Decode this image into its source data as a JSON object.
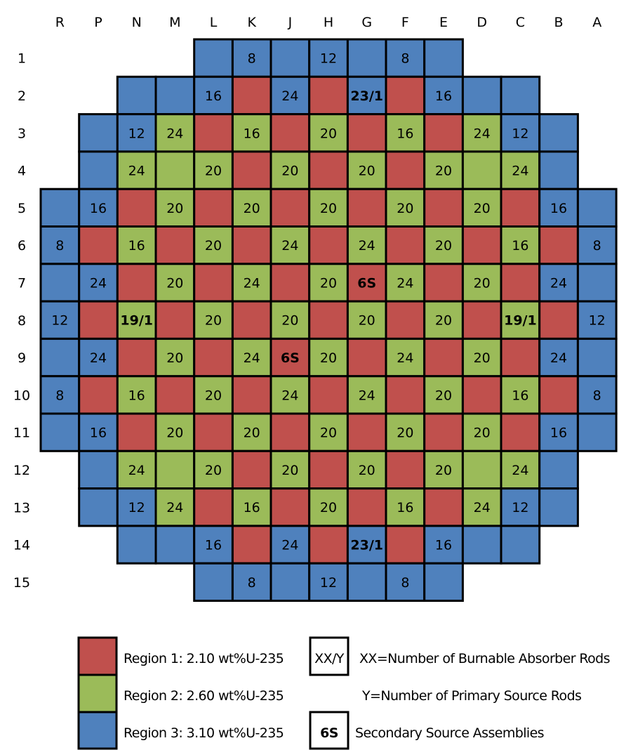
{
  "columns": [
    "R",
    "P",
    "N",
    "M",
    "L",
    "K",
    "J",
    "H",
    "G",
    "F",
    "E",
    "D",
    "C",
    "B",
    "A"
  ],
  "rows": [
    "1",
    "2",
    "3",
    "4",
    "5",
    "6",
    "7",
    "8",
    "9",
    "10",
    "11",
    "12",
    "13",
    "14",
    "15"
  ],
  "colors": {
    "1": "#c0504d",
    "2": "#9bbb59",
    "3": "#4f81bd",
    "outline": "#000000"
  },
  "grid": [
    [
      null,
      null,
      null,
      null,
      "3",
      "3",
      "3",
      "3",
      "3",
      "3",
      "3",
      null,
      null,
      null,
      null
    ],
    [
      null,
      null,
      "3",
      "3",
      "3",
      "1",
      "3",
      "1",
      "3",
      "1",
      "3",
      "3",
      "3",
      null,
      null
    ],
    [
      null,
      "3",
      "3",
      "2",
      "1",
      "2",
      "1",
      "2",
      "1",
      "2",
      "1",
      "2",
      "3",
      "3",
      null
    ],
    [
      null,
      "3",
      "2",
      "2",
      "2",
      "1",
      "2",
      "1",
      "2",
      "1",
      "2",
      "2",
      "2",
      "3",
      null
    ],
    [
      "3",
      "3",
      "1",
      "2",
      "1",
      "2",
      "1",
      "2",
      "1",
      "2",
      "1",
      "2",
      "1",
      "3",
      "3"
    ],
    [
      "3",
      "1",
      "2",
      "1",
      "2",
      "1",
      "2",
      "1",
      "2",
      "1",
      "2",
      "1",
      "2",
      "1",
      "3"
    ],
    [
      "3",
      "3",
      "1",
      "2",
      "1",
      "2",
      "1",
      "2",
      "1",
      "2",
      "1",
      "2",
      "1",
      "3",
      "3"
    ],
    [
      "3",
      "1",
      "2",
      "1",
      "2",
      "1",
      "2",
      "1",
      "2",
      "1",
      "2",
      "1",
      "2",
      "1",
      "3"
    ],
    [
      "3",
      "3",
      "1",
      "2",
      "1",
      "2",
      "1",
      "2",
      "1",
      "2",
      "1",
      "2",
      "1",
      "3",
      "3"
    ],
    [
      "3",
      "1",
      "2",
      "1",
      "2",
      "1",
      "2",
      "1",
      "2",
      "1",
      "2",
      "1",
      "2",
      "1",
      "3"
    ],
    [
      "3",
      "3",
      "1",
      "2",
      "1",
      "2",
      "1",
      "2",
      "1",
      "2",
      "1",
      "2",
      "1",
      "3",
      "3"
    ],
    [
      null,
      "3",
      "2",
      "2",
      "2",
      "1",
      "2",
      "1",
      "2",
      "1",
      "2",
      "2",
      "2",
      "3",
      null
    ],
    [
      null,
      "3",
      "3",
      "2",
      "1",
      "2",
      "1",
      "2",
      "1",
      "2",
      "1",
      "2",
      "3",
      "3",
      null
    ],
    [
      null,
      null,
      "3",
      "3",
      "3",
      "1",
      "3",
      "1",
      "3",
      "1",
      "3",
      "3",
      "3",
      null,
      null
    ],
    [
      null,
      null,
      null,
      null,
      "3",
      "3",
      "3",
      "3",
      "3",
      "3",
      "3",
      null,
      null,
      null,
      null
    ]
  ],
  "labels": [
    [
      "",
      "",
      "",
      "",
      "",
      "8",
      "",
      "12",
      "",
      "8",
      "",
      "",
      "",
      "",
      ""
    ],
    [
      "",
      "",
      "",
      "",
      "16",
      "",
      "24",
      "",
      "23/1",
      "",
      "16",
      "",
      "",
      "",
      ""
    ],
    [
      "",
      "",
      "12",
      "24",
      "",
      "16",
      "",
      "20",
      "",
      "16",
      "",
      "24",
      "12",
      "",
      ""
    ],
    [
      "",
      "",
      "24",
      "",
      "20",
      "",
      "20",
      "",
      "20",
      "",
      "20",
      "",
      "24",
      "",
      ""
    ],
    [
      "",
      "16",
      "",
      "20",
      "",
      "20",
      "",
      "20",
      "",
      "20",
      "",
      "20",
      "",
      "16",
      ""
    ],
    [
      "8",
      "",
      "16",
      "",
      "20",
      "",
      "24",
      "",
      "24",
      "",
      "20",
      "",
      "16",
      "",
      "8"
    ],
    [
      "",
      "24",
      "",
      "20",
      "",
      "24",
      "",
      "20",
      "6S",
      "24",
      "",
      "20",
      "",
      "24",
      ""
    ],
    [
      "12",
      "",
      "19/1",
      "",
      "20",
      "",
      "20",
      "",
      "20",
      "",
      "20",
      "",
      "19/1",
      "",
      "12"
    ],
    [
      "",
      "24",
      "",
      "20",
      "",
      "24",
      "6S",
      "20",
      "",
      "24",
      "",
      "20",
      "",
      "24",
      ""
    ],
    [
      "8",
      "",
      "16",
      "",
      "20",
      "",
      "24",
      "",
      "24",
      "",
      "20",
      "",
      "16",
      "",
      "8"
    ],
    [
      "",
      "16",
      "",
      "20",
      "",
      "20",
      "",
      "20",
      "",
      "20",
      "",
      "20",
      "",
      "16",
      ""
    ],
    [
      "",
      "",
      "24",
      "",
      "20",
      "",
      "20",
      "",
      "20",
      "",
      "20",
      "",
      "24",
      "",
      ""
    ],
    [
      "",
      "",
      "12",
      "24",
      "",
      "16",
      "",
      "20",
      "",
      "16",
      "",
      "24",
      "12",
      "",
      ""
    ],
    [
      "",
      "",
      "",
      "",
      "16",
      "",
      "24",
      "",
      "23/1",
      "",
      "16",
      "",
      "",
      "",
      ""
    ],
    [
      "",
      "",
      "",
      "",
      "",
      "8",
      "",
      "12",
      "",
      "8",
      "",
      "",
      "",
      "",
      ""
    ]
  ],
  "bold_labels": [
    "23/1",
    "19/1",
    "6S"
  ],
  "legend": {
    "regions": [
      {
        "region": "1",
        "text": "Region 1:  2.10 wt%U-235"
      },
      {
        "region": "2",
        "text": "Region 2:  2.60 wt%U-235"
      },
      {
        "region": "3",
        "text": "Region 3:  3.10 wt%U-235"
      }
    ],
    "key1_box": "XX/Y",
    "key1_line1": "XX=Number of Burnable Absorber Rods",
    "key1_line2": "Y=Number of Primary Source Rods",
    "key2_box": "6S",
    "key2_text": "Secondary Source Assemblies"
  }
}
